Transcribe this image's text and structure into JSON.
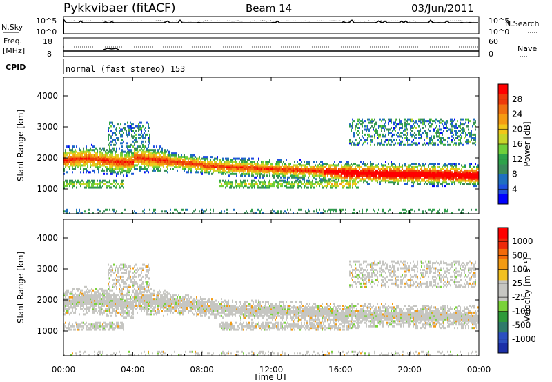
{
  "header": {
    "station": "Pykkvibaer (fitACF)",
    "beam": "Beam 14",
    "date": "03/Jun/2011"
  },
  "noise_panel": {
    "left_label": "N.Sky",
    "right_label": "N.Search",
    "left_ticks": [
      "10^5",
      "10^0"
    ],
    "right_ticks": [
      "10^5",
      "10^0"
    ]
  },
  "freq_panel": {
    "left_label_1": "Freq.",
    "left_label_2": "[MHz]",
    "right_label": "Nave",
    "left_ticks": [
      "18",
      "8"
    ],
    "right_ticks": [
      "60",
      "0"
    ]
  },
  "cpid": {
    "label": "CPID",
    "value": "normal (fast stereo) 153"
  },
  "chart_data": [
    {
      "type": "heatmap",
      "id": "power",
      "ylabel": "Slant Range [km]",
      "yticks": [
        "4000",
        "3000",
        "2000",
        "1000"
      ],
      "ylim": [
        200,
        4600
      ],
      "xlim_hours": [
        0,
        24
      ],
      "colorbar_label": "Power [dB]",
      "colorbar_ticks": [
        "28",
        "24",
        "20",
        "16",
        "12",
        "8",
        "4"
      ],
      "colorbar_colors": [
        "#0000ff",
        "#2050e0",
        "#1f6fc0",
        "#3a8a5a",
        "#2ea24a",
        "#6fcf3a",
        "#c8d62a",
        "#f2c71a",
        "#f59b12",
        "#f07010",
        "#ee3a0a",
        "#ff0000"
      ]
    },
    {
      "type": "heatmap",
      "id": "velocity",
      "ylabel": "Slant Range [km]",
      "yticks": [
        "4000",
        "3000",
        "2000",
        "1000"
      ],
      "ylim": [
        200,
        4600
      ],
      "xlim_hours": [
        0,
        24
      ],
      "colorbar_label": "Velocity [m s⁻¹]",
      "colorbar_ticks": [
        "1000",
        "500",
        "100",
        "25",
        "-25",
        "-100",
        "-500",
        "-1000"
      ],
      "colorbar_colors": [
        "#1c2fa8",
        "#2c4fc0",
        "#2f7a6a",
        "#2e9a3a",
        "#7ad23a",
        "#c6c6c2",
        "#c6c6c2",
        "#f2c020",
        "#f39b12",
        "#f36a0a",
        "#ee2a0a",
        "#ff0000"
      ]
    }
  ],
  "xaxis": {
    "label": "Time UT",
    "ticks": [
      "00:00",
      "04:00",
      "08:00",
      "12:00",
      "16:00",
      "20:00",
      "00:00"
    ]
  }
}
